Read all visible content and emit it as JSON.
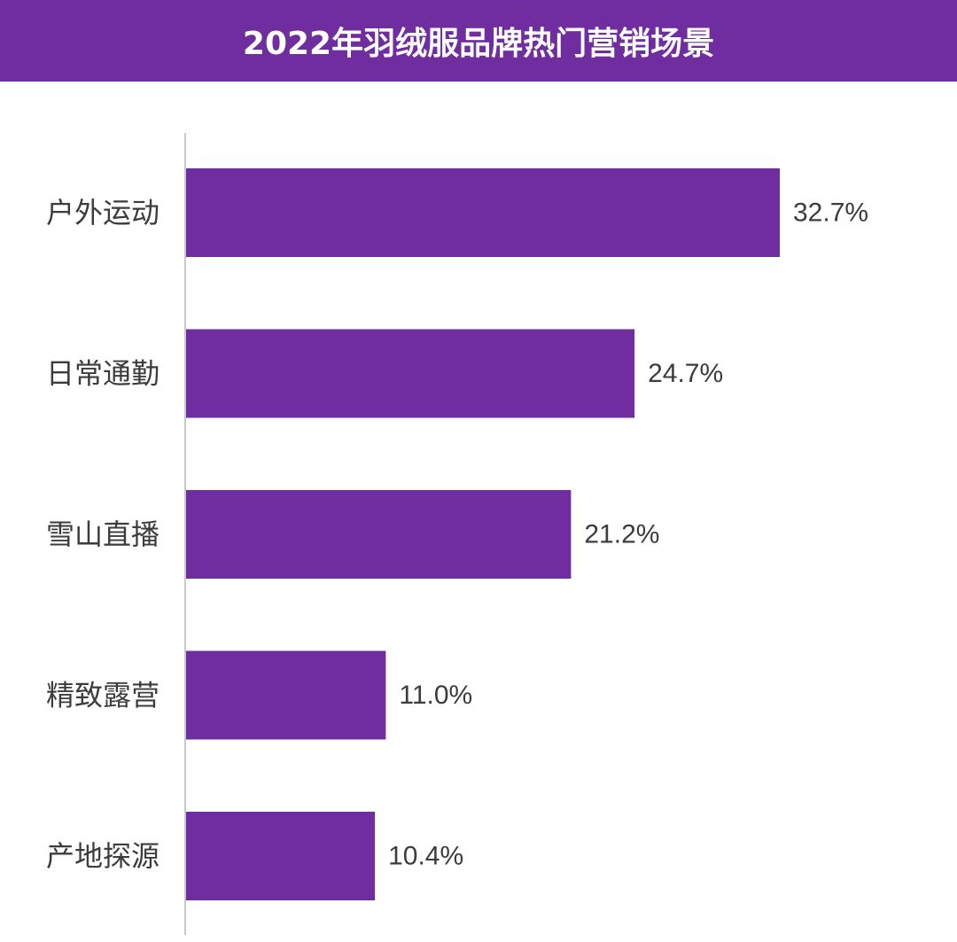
{
  "title": "2022年羽绒服品牌热门营销场景",
  "colors": {
    "bar": "#6F2DA0",
    "header": "#6F2DA0",
    "axis": "#C8C8C8",
    "label_text": "#3C3C3C"
  },
  "chart_data": {
    "type": "bar",
    "orientation": "horizontal",
    "title": "2022年羽绒服品牌热门营销场景",
    "categories": [
      "户外运动",
      "日常通勤",
      "雪山直播",
      "精致露营",
      "产地探源"
    ],
    "values": [
      32.7,
      24.7,
      21.2,
      11.0,
      10.4
    ],
    "value_labels": [
      "32.7%",
      "24.7%",
      "21.2%",
      "11.0%",
      "10.4%"
    ],
    "unit": "%",
    "xlabel": "",
    "ylabel": "",
    "xlim": [
      0,
      32.7
    ],
    "grid": false,
    "legend": "none"
  }
}
